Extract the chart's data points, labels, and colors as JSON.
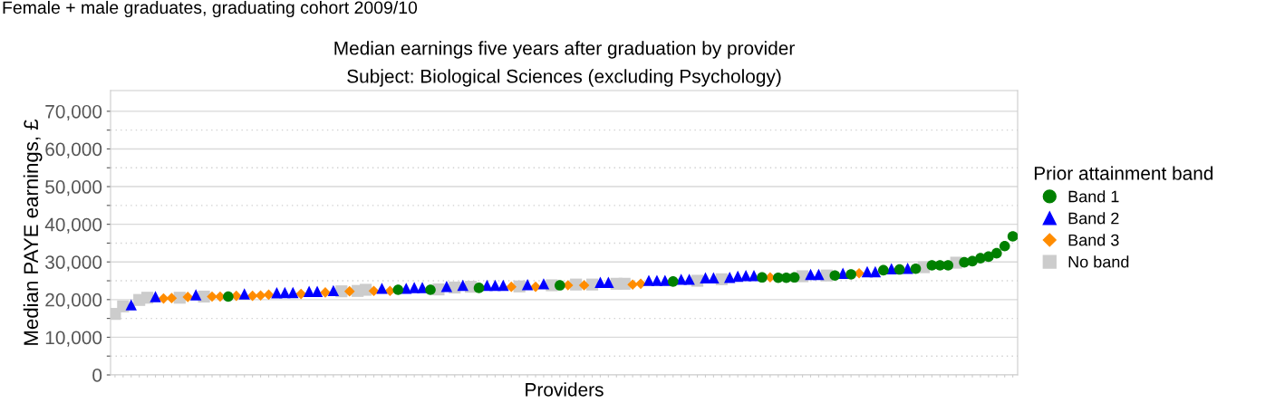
{
  "chart_data": {
    "type": "scatter",
    "title": "Median earnings five years after graduation by provider",
    "subtitle": "Subject: Biological Sciences (excluding Psychology)",
    "annotations": [
      "Female + male graduates, graduating cohort 2009/10"
    ],
    "xlabel": "Providers",
    "ylabel": "Median PAYE earnings, £",
    "legend_title": "Prior attainment band",
    "categories": [
      null,
      null,
      null,
      null,
      null,
      null,
      null,
      null,
      null,
      null,
      null,
      null,
      null,
      null,
      null,
      null,
      null,
      null,
      null,
      null,
      null,
      null,
      null,
      null,
      null,
      null,
      null,
      null,
      null,
      null,
      null,
      null,
      null,
      null,
      null,
      null,
      null,
      null,
      null,
      null,
      null,
      null,
      null,
      null,
      null,
      null,
      null,
      null,
      null,
      null,
      null,
      null,
      null,
      null,
      null,
      null,
      null,
      null,
      null,
      null,
      null,
      null,
      null,
      null,
      null,
      null,
      null,
      null,
      null,
      null,
      null,
      null,
      null,
      null,
      null,
      null,
      null,
      null,
      null,
      null,
      null,
      null,
      null,
      null,
      null,
      null,
      null,
      null,
      null,
      null,
      null,
      null,
      null,
      null,
      null,
      null,
      null,
      null,
      null,
      null,
      null,
      null,
      null,
      null,
      null,
      null,
      null,
      null,
      null,
      null,
      null,
      null
    ],
    "ylim": [
      0,
      75500
    ],
    "yticks": [
      {
        "value": 0,
        "label": "0"
      },
      {
        "value": 5000,
        "label": null
      },
      {
        "value": 10000,
        "label": "10,000"
      },
      {
        "value": 15000,
        "label": null
      },
      {
        "value": 20000,
        "label": "20,000"
      },
      {
        "value": 25000,
        "label": null
      },
      {
        "value": 30000,
        "label": "30,000"
      },
      {
        "value": 35000,
        "label": null
      },
      {
        "value": 40000,
        "label": "40,000"
      },
      {
        "value": 45000,
        "label": null
      },
      {
        "value": 50000,
        "label": "50,000"
      },
      {
        "value": 55000,
        "label": null
      },
      {
        "value": 60000,
        "label": "60,000"
      },
      {
        "value": 65000,
        "label": null
      },
      {
        "value": 70000,
        "label": "70,000"
      }
    ],
    "grid": "y",
    "legend": "right",
    "tick_labels": "y",
    "series": [
      {
        "name": "Band 1",
        "color": "#008000",
        "marker": "circle",
        "values": [
          null,
          null,
          null,
          null,
          null,
          null,
          null,
          null,
          null,
          null,
          null,
          null,
          null,
          null,
          20800,
          null,
          null,
          null,
          null,
          null,
          null,
          null,
          null,
          null,
          null,
          null,
          null,
          null,
          null,
          null,
          null,
          null,
          null,
          null,
          null,
          22600,
          null,
          null,
          null,
          22600,
          null,
          null,
          null,
          null,
          null,
          23100,
          null,
          null,
          null,
          null,
          null,
          null,
          null,
          null,
          null,
          23800,
          null,
          null,
          null,
          null,
          null,
          null,
          null,
          null,
          null,
          null,
          null,
          null,
          null,
          24800,
          null,
          null,
          null,
          null,
          null,
          null,
          null,
          null,
          null,
          null,
          25900,
          null,
          25800,
          25800,
          25900,
          null,
          null,
          null,
          null,
          26400,
          null,
          26700,
          null,
          null,
          null,
          27800,
          null,
          28000,
          null,
          28200,
          null,
          29100,
          29100,
          29100,
          null,
          29900,
          30200,
          31000,
          31400,
          32300,
          34200,
          36800
        ]
      },
      {
        "name": "Band 2",
        "color": "#0000ff",
        "marker": "triangle",
        "values": [
          null,
          null,
          18600,
          null,
          null,
          20800,
          null,
          null,
          null,
          null,
          21300,
          null,
          null,
          null,
          null,
          null,
          21500,
          null,
          null,
          null,
          21800,
          21900,
          21900,
          null,
          22200,
          22200,
          null,
          22400,
          null,
          null,
          null,
          null,
          null,
          23000,
          null,
          null,
          23000,
          23200,
          23200,
          null,
          null,
          23500,
          null,
          23800,
          null,
          null,
          23800,
          23800,
          23800,
          null,
          null,
          24000,
          null,
          24200,
          null,
          null,
          null,
          null,
          null,
          null,
          24600,
          24600,
          null,
          null,
          null,
          null,
          25100,
          25100,
          25100,
          null,
          25400,
          25400,
          null,
          25800,
          25800,
          null,
          25900,
          26200,
          26400,
          26400,
          null,
          null,
          null,
          null,
          null,
          null,
          26700,
          26700,
          null,
          null,
          27000,
          null,
          null,
          27400,
          27400,
          null,
          28200,
          null,
          28300,
          null,
          null,
          null,
          null,
          null,
          null,
          null,
          null,
          null,
          null,
          null,
          null,
          null
        ]
      },
      {
        "name": "Band 3",
        "color": "#ff8c00",
        "marker": "diamond",
        "values": [
          null,
          null,
          null,
          null,
          null,
          null,
          20300,
          20400,
          null,
          20700,
          null,
          null,
          20800,
          20800,
          null,
          21000,
          null,
          21000,
          21100,
          21300,
          null,
          null,
          null,
          21500,
          null,
          null,
          21900,
          null,
          null,
          22200,
          null,
          null,
          22300,
          null,
          22300,
          null,
          null,
          null,
          null,
          null,
          null,
          null,
          null,
          null,
          null,
          null,
          null,
          null,
          null,
          23400,
          null,
          null,
          23400,
          null,
          null,
          null,
          23800,
          null,
          23800,
          null,
          null,
          null,
          null,
          null,
          24000,
          24200,
          null,
          null,
          null,
          null,
          null,
          null,
          null,
          null,
          null,
          null,
          null,
          null,
          null,
          null,
          null,
          25900,
          null,
          null,
          null,
          null,
          null,
          null,
          null,
          null,
          null,
          null,
          27000,
          null,
          null,
          null,
          null,
          null,
          null,
          null,
          null,
          null,
          null,
          null,
          null,
          null,
          null,
          null,
          null,
          null,
          null,
          null
        ]
      },
      {
        "name": "No band",
        "color": "#cccccc",
        "marker": "square",
        "values": [
          16200,
          18200,
          null,
          19900,
          20500,
          null,
          null,
          null,
          20500,
          null,
          null,
          20800,
          null,
          null,
          null,
          null,
          null,
          null,
          null,
          null,
          null,
          null,
          null,
          null,
          null,
          null,
          null,
          null,
          22200,
          null,
          22300,
          22600,
          null,
          null,
          null,
          null,
          null,
          null,
          null,
          null,
          22700,
          null,
          23200,
          null,
          23400,
          null,
          null,
          null,
          null,
          null,
          23500,
          null,
          null,
          null,
          23800,
          null,
          null,
          24000,
          null,
          24000,
          null,
          null,
          24200,
          24200,
          null,
          null,
          null,
          null,
          null,
          null,
          null,
          null,
          25000,
          null,
          null,
          25400,
          null,
          null,
          null,
          null,
          null,
          null,
          null,
          null,
          null,
          26200,
          null,
          null,
          26400,
          null,
          null,
          null,
          null,
          null,
          null,
          null,
          null,
          null,
          null,
          null,
          28600,
          null,
          null,
          null,
          29800,
          null,
          null,
          null,
          null,
          null,
          null,
          null
        ]
      }
    ]
  }
}
